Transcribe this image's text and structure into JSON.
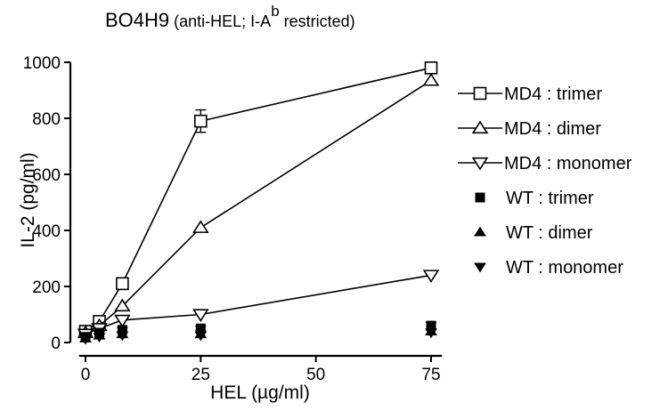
{
  "chart_data": {
    "type": "scatter",
    "title": {
      "main": "BO4H9",
      "paren_open": " (anti-HEL; I-A",
      "superscript": "b",
      "paren_close": " restricted)"
    },
    "xlabel": "HEL (µg/ml)",
    "ylabel": "IL-2 (pg/ml)",
    "xlim": [
      -1,
      78
    ],
    "ylim": [
      0,
      1000
    ],
    "xticks": [
      0,
      25,
      50,
      75
    ],
    "yticks": [
      0,
      200,
      400,
      600,
      800,
      1000
    ],
    "grid": false,
    "legend_position": "right",
    "x": [
      0,
      3,
      8,
      25,
      75
    ],
    "series": [
      {
        "name": "MD4 : trimer",
        "values": [
          40,
          75,
          210,
          790,
          980
        ],
        "errors": [
          0,
          0,
          0,
          40,
          0
        ],
        "marker": "square",
        "filled": false,
        "line": true
      },
      {
        "name": "MD4 : dimer",
        "values": [
          35,
          60,
          130,
          410,
          935
        ],
        "errors": [
          0,
          0,
          0,
          0,
          0
        ],
        "marker": "triangle-up",
        "filled": false,
        "line": true
      },
      {
        "name": "MD4 : monomer",
        "values": [
          30,
          50,
          80,
          100,
          240
        ],
        "errors": [
          0,
          0,
          0,
          0,
          0
        ],
        "marker": "triangle-down",
        "filled": false,
        "line": true
      },
      {
        "name": "WT : trimer",
        "values": [
          20,
          35,
          45,
          50,
          60
        ],
        "errors": [
          0,
          5,
          8,
          8,
          12
        ],
        "marker": "square",
        "filled": true,
        "line": false
      },
      {
        "name": "WT : dimer",
        "values": [
          15,
          25,
          30,
          30,
          40
        ],
        "errors": [
          0,
          0,
          0,
          0,
          0
        ],
        "marker": "triangle-up",
        "filled": true,
        "line": false
      },
      {
        "name": "WT : monomer",
        "values": [
          12,
          20,
          25,
          25,
          35
        ],
        "errors": [
          0,
          0,
          0,
          0,
          0
        ],
        "marker": "triangle-down",
        "filled": true,
        "line": false
      }
    ]
  }
}
